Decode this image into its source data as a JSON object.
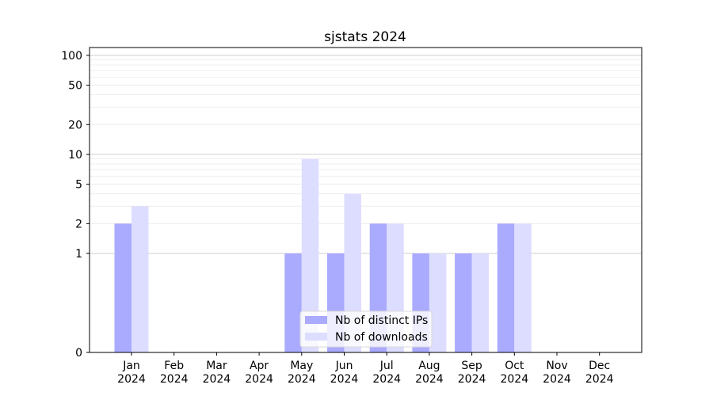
{
  "chart_data": {
    "type": "bar",
    "title": "sjstats 2024",
    "categories": [
      "Jan\n2024",
      "Feb\n2024",
      "Mar\n2024",
      "Apr\n2024",
      "May\n2024",
      "Jun\n2024",
      "Jul\n2024",
      "Aug\n2024",
      "Sep\n2024",
      "Oct\n2024",
      "Nov\n2024",
      "Dec\n2024"
    ],
    "series": [
      {
        "name": "Nb of distinct IPs",
        "values": [
          2,
          0,
          0,
          0,
          1,
          1,
          2,
          1,
          1,
          2,
          0,
          0
        ],
        "color": "#aaaaff"
      },
      {
        "name": "Nb of downloads",
        "values": [
          3,
          0,
          0,
          0,
          9,
          4,
          2,
          1,
          1,
          2,
          0,
          0
        ],
        "color": "#ddddff"
      }
    ],
    "yscale": "symlog",
    "ylim": [
      0,
      120
    ],
    "yticks": [
      0,
      1,
      2,
      5,
      10,
      20,
      50,
      100
    ],
    "grid": true,
    "legend_position": "lower center",
    "xlabel": "",
    "ylabel": ""
  }
}
